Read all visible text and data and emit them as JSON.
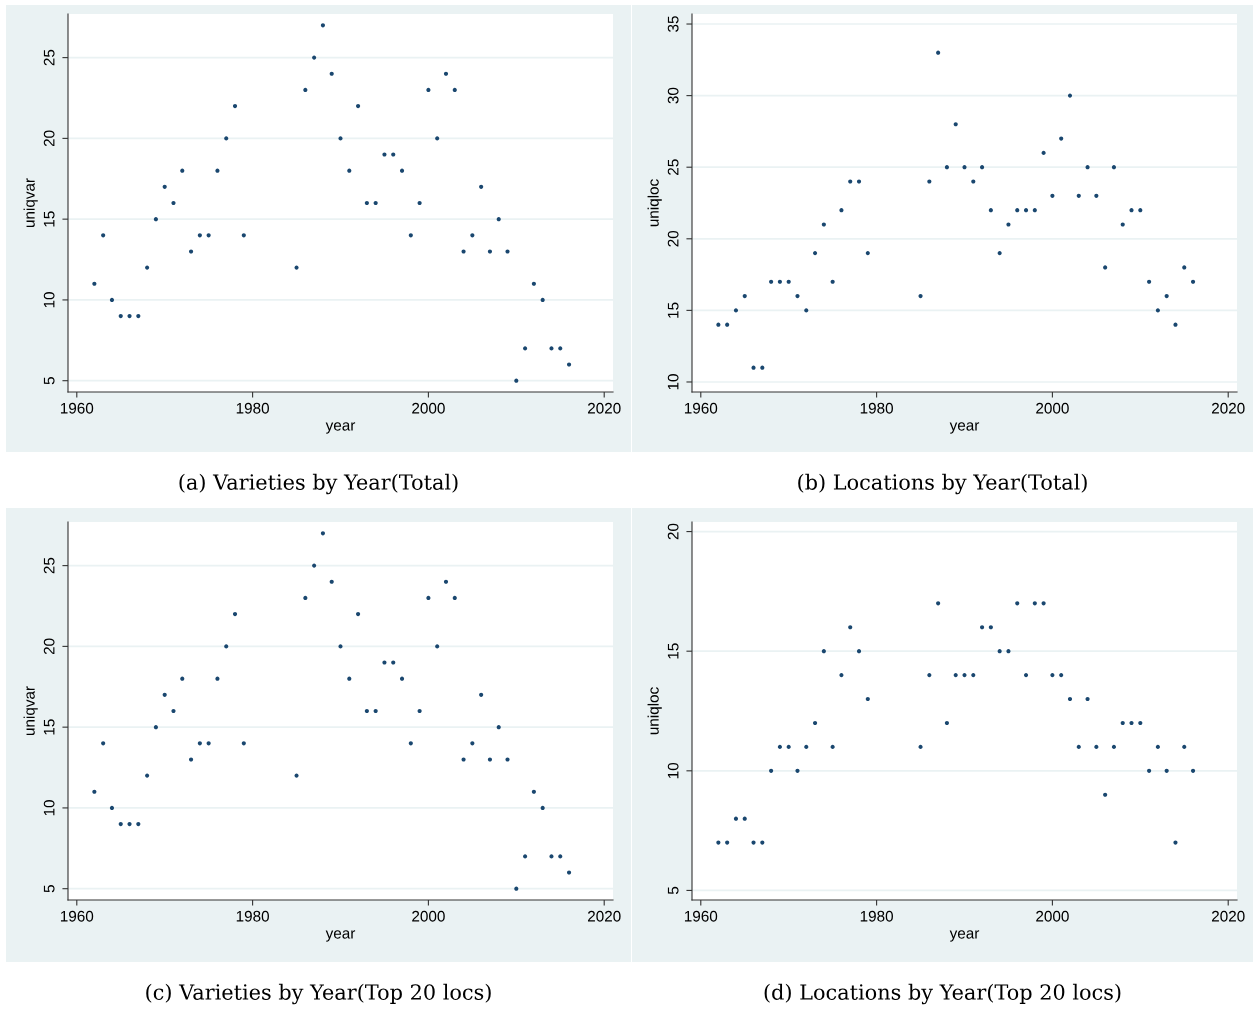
{
  "chart_data": [
    {
      "type": "scatter",
      "title": "(a) Varieties by Year(Total)",
      "xlabel": "year",
      "ylabel": "uniqvar",
      "color": "#1a476f",
      "marker": "circle",
      "grid": "y",
      "x": [
        1962,
        1963,
        1964,
        1965,
        1966,
        1967,
        1968,
        1969,
        1970,
        1971,
        1972,
        1973,
        1974,
        1975,
        1976,
        1977,
        1978,
        1979,
        1985,
        1986,
        1987,
        1988,
        1989,
        1990,
        1991,
        1992,
        1993,
        1994,
        1995,
        1996,
        1997,
        1998,
        1999,
        2000,
        2001,
        2002,
        2003,
        2004,
        2005,
        2006,
        2007,
        2008,
        2009,
        2010,
        2011,
        2012,
        2013,
        2014,
        2015,
        2016
      ],
      "values": [
        11,
        14,
        10,
        9,
        9,
        9,
        12,
        15,
        17,
        16,
        18,
        13,
        14,
        14,
        18,
        20,
        22,
        14,
        12,
        23,
        25,
        27,
        24,
        20,
        18,
        22,
        16,
        16,
        19,
        19,
        18,
        14,
        16,
        23,
        20,
        24,
        23,
        13,
        14,
        17,
        13,
        15,
        13,
        5,
        7,
        11,
        10,
        7,
        7,
        6
      ],
      "xlim": [
        1959,
        2021
      ],
      "xticks": [
        1960,
        1980,
        2000,
        2020
      ],
      "ylim": [
        4.3,
        27.7
      ],
      "yticks": [
        5,
        10,
        15,
        20,
        25
      ]
    },
    {
      "type": "scatter",
      "title": "(b) Locations by Year(Total)",
      "xlabel": "year",
      "ylabel": "uniqloc",
      "color": "#1a476f",
      "marker": "circle",
      "grid": "y",
      "x": [
        1962,
        1963,
        1964,
        1965,
        1966,
        1967,
        1968,
        1969,
        1970,
        1971,
        1972,
        1973,
        1974,
        1975,
        1976,
        1977,
        1978,
        1979,
        1985,
        1986,
        1987,
        1988,
        1989,
        1990,
        1991,
        1992,
        1993,
        1994,
        1995,
        1996,
        1997,
        1998,
        1999,
        2000,
        2001,
        2002,
        2003,
        2004,
        2005,
        2006,
        2007,
        2008,
        2009,
        2010,
        2011,
        2012,
        2013,
        2014,
        2015,
        2016
      ],
      "values": [
        14,
        14,
        15,
        16,
        11,
        11,
        17,
        17,
        17,
        16,
        15,
        19,
        21,
        17,
        22,
        24,
        24,
        19,
        16,
        24,
        33,
        25,
        28,
        25,
        24,
        25,
        22,
        19,
        21,
        22,
        22,
        22,
        26,
        23,
        27,
        30,
        23,
        25,
        23,
        18,
        25,
        21,
        22,
        22,
        17,
        15,
        16,
        14,
        18,
        17
      ],
      "xlim": [
        1959,
        2021
      ],
      "xticks": [
        1960,
        1980,
        2000,
        2020
      ],
      "ylim": [
        9.3,
        35.7
      ],
      "yticks": [
        10,
        15,
        20,
        25,
        30,
        35
      ]
    },
    {
      "type": "scatter",
      "title": "(c) Varieties by Year(Top 20 locs)",
      "xlabel": "year",
      "ylabel": "uniqvar",
      "color": "#1a476f",
      "marker": "circle",
      "grid": "y",
      "x": [
        1962,
        1963,
        1964,
        1965,
        1966,
        1967,
        1968,
        1969,
        1970,
        1971,
        1972,
        1973,
        1974,
        1975,
        1976,
        1977,
        1978,
        1979,
        1985,
        1986,
        1987,
        1988,
        1989,
        1990,
        1991,
        1992,
        1993,
        1994,
        1995,
        1996,
        1997,
        1998,
        1999,
        2000,
        2001,
        2002,
        2003,
        2004,
        2005,
        2006,
        2007,
        2008,
        2009,
        2010,
        2011,
        2012,
        2013,
        2014,
        2015,
        2016
      ],
      "values": [
        11,
        14,
        10,
        9,
        9,
        9,
        12,
        15,
        17,
        16,
        18,
        13,
        14,
        14,
        18,
        20,
        22,
        14,
        12,
        23,
        25,
        27,
        24,
        20,
        18,
        22,
        16,
        16,
        19,
        19,
        18,
        14,
        16,
        23,
        20,
        24,
        23,
        13,
        14,
        17,
        13,
        15,
        13,
        5,
        7,
        11,
        10,
        7,
        7,
        6
      ],
      "xlim": [
        1959,
        2021
      ],
      "xticks": [
        1960,
        1980,
        2000,
        2020
      ],
      "ylim": [
        4.3,
        27.7
      ],
      "yticks": [
        5,
        10,
        15,
        20,
        25
      ]
    },
    {
      "type": "scatter",
      "title": "(d) Locations by Year(Top 20 locs)",
      "xlabel": "year",
      "ylabel": "uniqloc",
      "color": "#1a476f",
      "marker": "circle",
      "grid": "y",
      "x": [
        1962,
        1963,
        1964,
        1965,
        1966,
        1967,
        1968,
        1969,
        1970,
        1971,
        1972,
        1973,
        1974,
        1975,
        1976,
        1977,
        1978,
        1979,
        1985,
        1986,
        1987,
        1988,
        1989,
        1990,
        1991,
        1992,
        1993,
        1994,
        1995,
        1996,
        1997,
        1998,
        1999,
        2000,
        2001,
        2002,
        2003,
        2004,
        2005,
        2006,
        2007,
        2008,
        2009,
        2010,
        2011,
        2012,
        2013,
        2014,
        2015,
        2016
      ],
      "values": [
        7,
        7,
        8,
        8,
        7,
        7,
        10,
        11,
        11,
        10,
        11,
        12,
        15,
        11,
        14,
        16,
        15,
        13,
        11,
        14,
        17,
        12,
        14,
        14,
        14,
        16,
        16,
        15,
        15,
        17,
        14,
        17,
        17,
        14,
        14,
        13,
        11,
        13,
        11,
        9,
        11,
        12,
        12,
        12,
        10,
        11,
        10,
        7,
        11,
        10
      ],
      "xlim": [
        1959,
        2021
      ],
      "xticks": [
        1960,
        1980,
        2000,
        2020
      ],
      "ylim": [
        4.6,
        20.4
      ],
      "yticks": [
        5,
        10,
        15,
        20
      ]
    }
  ]
}
